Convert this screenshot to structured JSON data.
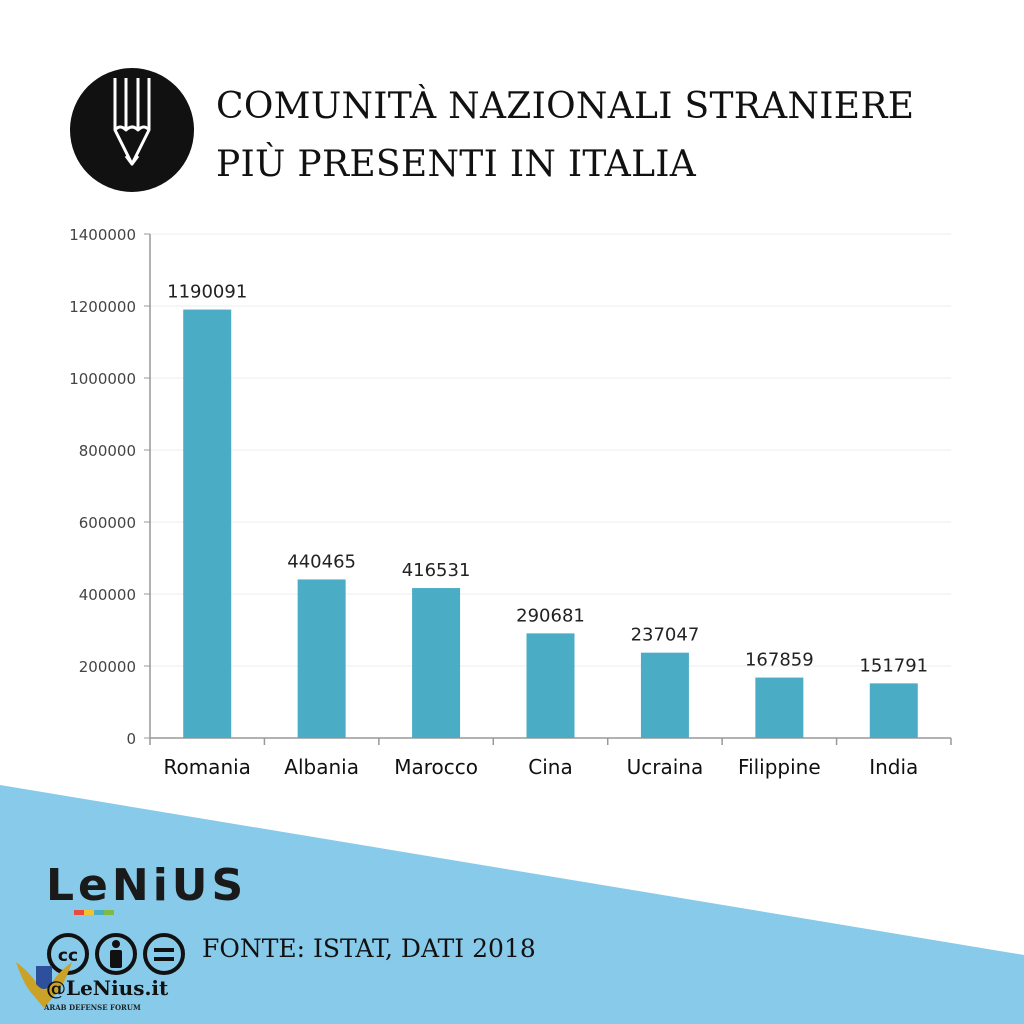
{
  "header": {
    "title_line1": "COMUNITÀ NAZIONALI STRANIERE",
    "title_line2": "PIÙ PRESENTI IN ITALIA",
    "icon": "pencil-icon"
  },
  "chart_data": {
    "type": "bar",
    "categories": [
      "Romania",
      "Albania",
      "Marocco",
      "Cina",
      "Ucraina",
      "Filippine",
      "India"
    ],
    "values": [
      1190091,
      440465,
      416531,
      290681,
      237047,
      167859,
      151791
    ],
    "ylim": [
      0,
      1400000
    ],
    "yticks": [
      0,
      200000,
      400000,
      600000,
      800000,
      1000000,
      1200000,
      1400000
    ],
    "grid": true,
    "bar_color": "#4BACC6"
  },
  "footer": {
    "brand": "LeNiUS",
    "license_icons": [
      "cc-icon",
      "attribution-icon",
      "no-derivatives-icon"
    ],
    "source": "FONTE: ISTAT, DATI 2018",
    "handle": "@LeNius.it",
    "watermark_text": "ARAB DEFENSE FORUM",
    "wedge_color": "#87CAEA"
  }
}
